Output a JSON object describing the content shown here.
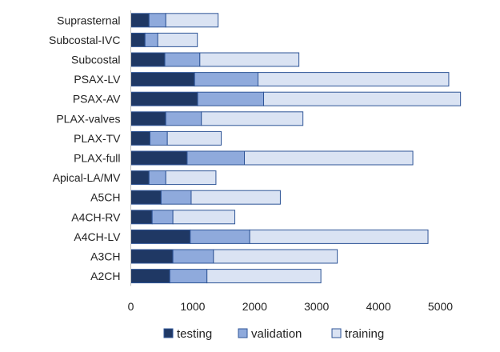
{
  "chart_data": {
    "type": "bar",
    "orientation": "horizontal",
    "stacked": true,
    "title": "",
    "xlabel": "",
    "ylabel": "",
    "xlim": [
      0,
      5400
    ],
    "xticks": [
      0,
      1000,
      2000,
      3000,
      4000,
      5000
    ],
    "xtick_labels": [
      "0",
      "1000",
      "2000",
      "3000",
      "4000",
      "5000"
    ],
    "grid": false,
    "legend_position": "bottom",
    "categories": [
      "Suprasternal",
      "Subcostal-IVC",
      "Subcostal",
      "PSAX-LV",
      "PSAX-AV",
      "PLAX-valves",
      "PLAX-TV",
      "PLAX-full",
      "Apical-LA/MV",
      "A5CH",
      "A4CH-RV",
      "A4CH-LV",
      "A3CH",
      "A2CH"
    ],
    "series": [
      {
        "name": "testing",
        "color": "#1f3864",
        "values": [
          295,
          230,
          550,
          1030,
          1080,
          565,
          310,
          910,
          295,
          490,
          345,
          960,
          680,
          630
        ]
      },
      {
        "name": "validation",
        "color": "#8faadc",
        "values": [
          270,
          205,
          565,
          1025,
          1065,
          575,
          280,
          925,
          270,
          485,
          335,
          960,
          655,
          600
        ]
      },
      {
        "name": "training",
        "color": "#dae3f3",
        "values": [
          845,
          640,
          1600,
          3080,
          3180,
          1640,
          870,
          2720,
          810,
          1440,
          1000,
          2880,
          2000,
          1840
        ]
      }
    ]
  }
}
